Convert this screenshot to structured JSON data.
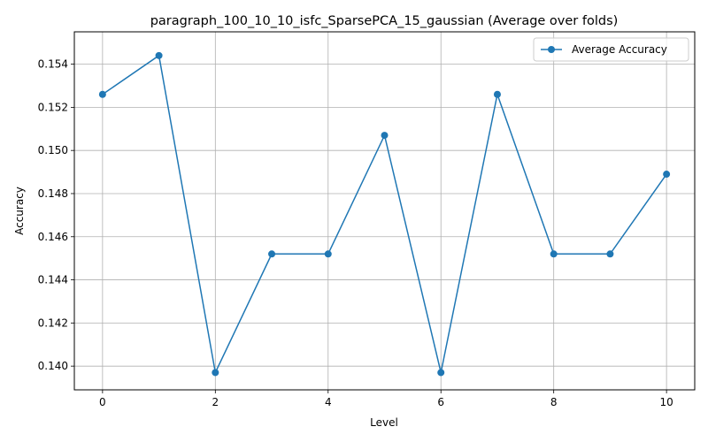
{
  "chart_data": {
    "type": "line",
    "title": "paragraph_100_10_10_isfc_SparsePCA_15_gaussian (Average over folds)",
    "xlabel": "Level",
    "ylabel": "Accuracy",
    "x": [
      0,
      1,
      2,
      3,
      4,
      5,
      6,
      7,
      8,
      9,
      10
    ],
    "series": [
      {
        "name": "Average Accuracy",
        "color": "#1f77b4",
        "marker": "circle",
        "values": [
          0.1526,
          0.1544,
          0.1397,
          0.1452,
          0.1452,
          0.1507,
          0.1397,
          0.1526,
          0.1452,
          0.1452,
          0.1489
        ]
      }
    ],
    "xlim": [
      -0.5,
      10.5
    ],
    "ylim": [
      0.1389,
      0.1555
    ],
    "xticks": [
      0,
      2,
      4,
      6,
      8,
      10
    ],
    "xtick_labels": [
      "0",
      "2",
      "4",
      "6",
      "8",
      "10"
    ],
    "yticks": [
      0.14,
      0.142,
      0.144,
      0.146,
      0.148,
      0.15,
      0.152,
      0.154
    ],
    "ytick_labels": [
      "0.140",
      "0.142",
      "0.144",
      "0.146",
      "0.148",
      "0.150",
      "0.152",
      "0.154"
    ],
    "grid": true,
    "legend_position": "top-right"
  }
}
